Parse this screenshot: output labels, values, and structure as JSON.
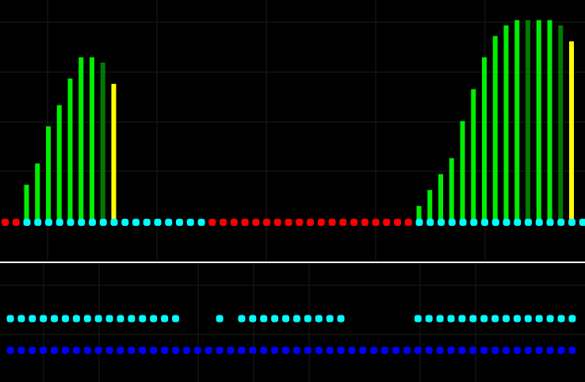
{
  "colors": {
    "background": "#000000",
    "grid": "#1c1c1c",
    "divider": "#ffffff",
    "bar_up": "#00ee00",
    "bar_dim": "#007a00",
    "bar_last": "#ffff00",
    "dot_cyan": "#00ffff",
    "dot_red": "#ff0000",
    "dot_blue": "#0000ff"
  },
  "chart_data": [
    {
      "type": "bar",
      "panel": "upper",
      "series": [
        {
          "values": [
            0,
            0,
            7,
            11,
            18,
            22,
            27,
            31,
            31,
            30,
            26,
            0,
            0,
            0,
            0,
            0,
            0,
            0,
            0,
            0,
            0,
            0,
            0,
            0,
            0,
            0,
            0,
            0,
            0,
            0,
            0,
            0,
            0,
            0,
            0,
            0,
            0,
            0,
            3,
            6,
            9,
            12,
            19,
            25,
            31,
            35,
            37,
            38,
            38,
            38,
            38,
            37,
            34,
            0
          ],
          "colors": [
            "up",
            "up",
            "up",
            "up",
            "up",
            "up",
            "up",
            "up",
            "up",
            "dim",
            "last",
            "up",
            "up",
            "up",
            "up",
            "up",
            "up",
            "up",
            "up",
            "up",
            "up",
            "up",
            "up",
            "up",
            "up",
            "up",
            "up",
            "up",
            "up",
            "up",
            "up",
            "up",
            "up",
            "up",
            "up",
            "up",
            "up",
            "up",
            "up",
            "up",
            "up",
            "up",
            "up",
            "up",
            "up",
            "up",
            "up",
            "up",
            "dim",
            "up",
            "up",
            "dim",
            "last",
            "up"
          ]
        }
      ],
      "baseline_dots": [
        "red",
        "red",
        "cyan",
        "cyan",
        "cyan",
        "cyan",
        "cyan",
        "cyan",
        "cyan",
        "cyan",
        "cyan",
        "cyan",
        "cyan",
        "cyan",
        "cyan",
        "cyan",
        "cyan",
        "cyan",
        "cyan",
        "red",
        "red",
        "red",
        "red",
        "red",
        "red",
        "red",
        "red",
        "red",
        "red",
        "red",
        "red",
        "red",
        "red",
        "red",
        "red",
        "red",
        "red",
        "red",
        "cyan",
        "cyan",
        "cyan",
        "cyan",
        "cyan",
        "cyan",
        "cyan",
        "cyan",
        "cyan",
        "cyan",
        "cyan",
        "cyan",
        "cyan",
        "cyan",
        "cyan",
        "cyan"
      ],
      "ylim": [
        0,
        40
      ],
      "grid": true
    },
    {
      "type": "scatter",
      "panel": "lower",
      "series": [
        {
          "color": "cyan",
          "present": [
            1,
            1,
            1,
            1,
            1,
            1,
            1,
            1,
            1,
            1,
            1,
            1,
            1,
            1,
            1,
            1,
            0,
            0,
            0,
            1,
            0,
            1,
            1,
            1,
            1,
            1,
            1,
            1,
            1,
            1,
            1,
            0,
            0,
            0,
            0,
            0,
            0,
            1,
            1,
            1,
            1,
            1,
            1,
            1,
            1,
            1,
            1,
            1,
            1,
            1,
            1,
            1,
            1,
            1,
            1
          ]
        },
        {
          "color": "blue",
          "present": [
            1,
            1,
            1,
            1,
            1,
            1,
            1,
            1,
            1,
            1,
            1,
            1,
            1,
            1,
            1,
            1,
            1,
            1,
            1,
            1,
            1,
            1,
            1,
            1,
            1,
            1,
            1,
            1,
            1,
            1,
            1,
            1,
            1,
            1,
            1,
            1,
            1,
            1,
            1,
            1,
            1,
            1,
            1,
            1,
            1,
            1,
            1,
            1,
            1,
            1,
            1,
            1,
            1,
            1,
            1
          ]
        }
      ],
      "grid": true
    }
  ]
}
